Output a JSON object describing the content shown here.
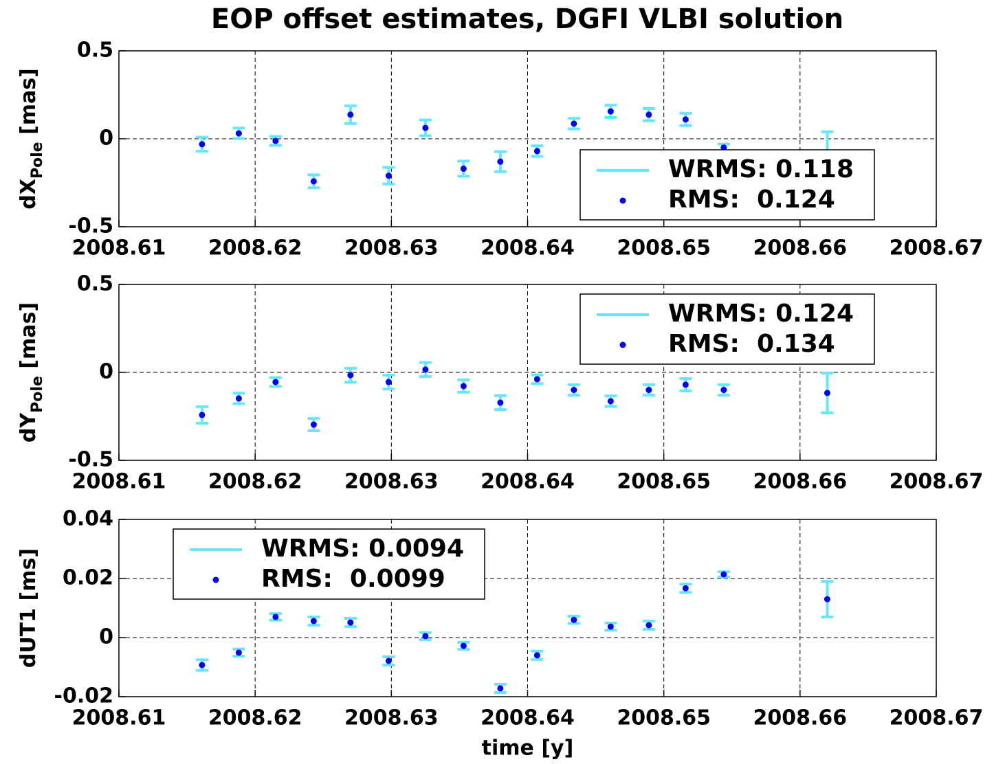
{
  "chart_data": [
    {
      "type": "errorbar",
      "title": "EOP offset estimates, DGFI VLBI solution",
      "ylabel": "dX",
      "ylabel_sub": "Pole",
      "ylabel_unit": "[mas]",
      "x": [
        2008.6161,
        2008.6188,
        2008.6215,
        2008.6243,
        2008.627,
        2008.6298,
        2008.6325,
        2008.6353,
        2008.638,
        2008.6407,
        2008.6434,
        2008.6461,
        2008.6489,
        2008.6516,
        2008.6544,
        2008.662
      ],
      "series": [
        {
          "name": "WRMS: 0.118",
          "color": "#66e6ff",
          "values": [
            -0.031,
            0.031,
            -0.012,
            -0.242,
            0.137,
            -0.21,
            0.062,
            -0.17,
            -0.13,
            -0.07,
            0.086,
            0.156,
            0.137,
            0.11,
            -0.05,
            -0.08
          ],
          "errors": [
            0.04,
            0.03,
            0.025,
            0.037,
            0.05,
            0.047,
            0.045,
            0.043,
            0.057,
            0.03,
            0.03,
            0.035,
            0.035,
            0.035,
            0.02,
            0.12
          ]
        },
        {
          "name": "RMS:  0.124",
          "color": "#0000ff"
        }
      ],
      "xlim": [
        2008.61,
        2008.67
      ],
      "xticks": [
        2008.61,
        2008.62,
        2008.63,
        2008.64,
        2008.65,
        2008.66,
        2008.67
      ],
      "ylim": [
        -0.5,
        0.5
      ],
      "yticks": [
        -0.5,
        0,
        0.5
      ],
      "grid": true,
      "legend": "lower right"
    },
    {
      "type": "errorbar",
      "ylabel": "dY",
      "ylabel_sub": "Pole",
      "ylabel_unit": "[mas]",
      "x": [
        2008.6161,
        2008.6188,
        2008.6215,
        2008.6243,
        2008.627,
        2008.6298,
        2008.6325,
        2008.6353,
        2008.638,
        2008.6407,
        2008.6434,
        2008.6461,
        2008.6489,
        2008.6516,
        2008.6544,
        2008.662
      ],
      "series": [
        {
          "name": "WRMS: 0.124",
          "color": "#66e6ff",
          "values": [
            -0.242,
            -0.148,
            -0.055,
            -0.297,
            -0.016,
            -0.055,
            0.016,
            -0.078,
            -0.172,
            -0.039,
            -0.1,
            -0.164,
            -0.1,
            -0.07,
            -0.1,
            -0.117
          ],
          "errors": [
            0.047,
            0.03,
            0.025,
            0.035,
            0.04,
            0.04,
            0.04,
            0.035,
            0.04,
            0.025,
            0.03,
            0.03,
            0.03,
            0.035,
            0.03,
            0.113
          ]
        },
        {
          "name": "RMS:  0.134",
          "color": "#0000ff"
        }
      ],
      "xlim": [
        2008.61,
        2008.67
      ],
      "xticks": [
        2008.61,
        2008.62,
        2008.63,
        2008.64,
        2008.65,
        2008.66,
        2008.67
      ],
      "ylim": [
        -0.5,
        0.5
      ],
      "yticks": [
        -0.5,
        0,
        0.5
      ],
      "grid": true,
      "legend": "upper right"
    },
    {
      "type": "errorbar",
      "ylabel": "dUT1 [ms]",
      "xlabel": "time [y]",
      "x": [
        2008.6161,
        2008.6188,
        2008.6215,
        2008.6243,
        2008.627,
        2008.6298,
        2008.6325,
        2008.6353,
        2008.638,
        2008.6407,
        2008.6434,
        2008.6461,
        2008.6489,
        2008.6516,
        2008.6544,
        2008.662
      ],
      "series": [
        {
          "name": "WRMS: 0.0094",
          "color": "#66e6ff",
          "values": [
            -0.0093,
            -0.0051,
            0.007,
            0.0056,
            0.0051,
            -0.0079,
            0.0005,
            -0.0028,
            -0.0172,
            -0.006,
            0.006,
            0.0037,
            0.0042,
            0.0167,
            0.0214,
            0.013
          ],
          "errors": [
            0.0018,
            0.0012,
            0.0011,
            0.0014,
            0.0014,
            0.0014,
            0.0012,
            0.0012,
            0.0014,
            0.0014,
            0.0012,
            0.0012,
            0.0014,
            0.0014,
            0.0009,
            0.006
          ]
        },
        {
          "name": "RMS:  0.0099",
          "color": "#0000ff"
        }
      ],
      "xlim": [
        2008.61,
        2008.67
      ],
      "xticks": [
        2008.61,
        2008.62,
        2008.63,
        2008.64,
        2008.65,
        2008.66,
        2008.67
      ],
      "ylim": [
        -0.02,
        0.04
      ],
      "yticks": [
        -0.02,
        0,
        0.02,
        0.04
      ],
      "grid": true,
      "legend": "upper left"
    }
  ]
}
